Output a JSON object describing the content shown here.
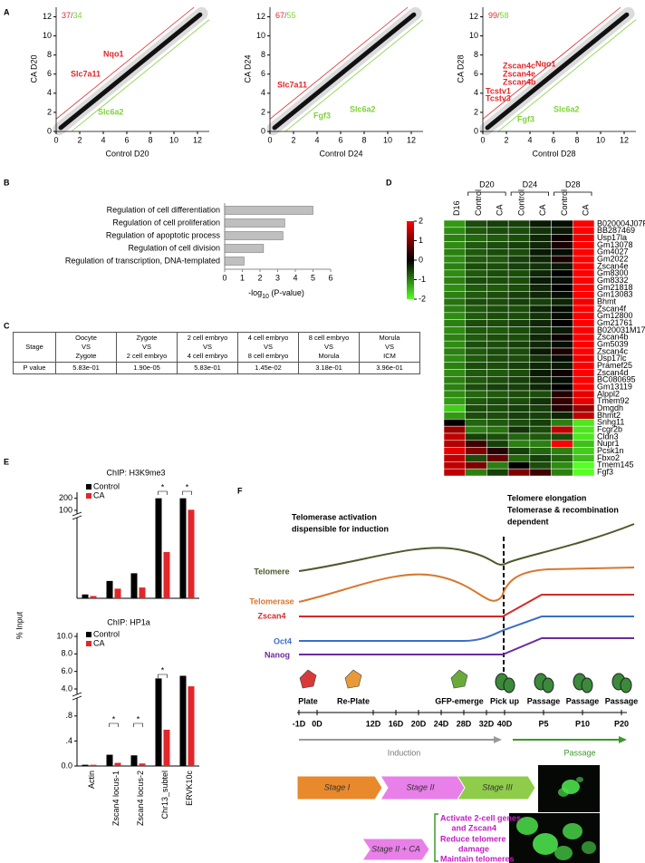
{
  "panel_labels": [
    "A",
    "B",
    "C",
    "D",
    "E",
    "F"
  ],
  "chart_data": [
    {
      "type": "scatter",
      "up_count": 37,
      "count_separator": "/",
      "down_count": 34,
      "up_color": "#e3262a",
      "down_color": "#7fd13b",
      "xlabel": "Control D20",
      "ylabel": "CA D20",
      "xlim": [
        0,
        13
      ],
      "ylim": [
        0,
        13
      ],
      "xticks": [
        0,
        2,
        4,
        6,
        8,
        10,
        12
      ],
      "yticks": [
        0,
        2,
        4,
        6,
        8,
        10,
        12
      ],
      "genes_up": [
        "Slc7a11",
        "Nqo1"
      ],
      "genes_down": [
        "Slc6a2"
      ]
    },
    {
      "type": "scatter",
      "up_count": 67,
      "count_separator": "/",
      "down_count": 55,
      "up_color": "#e3262a",
      "down_color": "#7fd13b",
      "xlabel": "Control D24",
      "ylabel": "CA D24",
      "xlim": [
        0,
        13
      ],
      "ylim": [
        0,
        13
      ],
      "xticks": [
        0,
        2,
        4,
        6,
        8,
        10,
        12
      ],
      "yticks": [
        0,
        2,
        4,
        6,
        8,
        10,
        12
      ],
      "genes_up": [
        "Slc7a11"
      ],
      "genes_down": [
        "Fgf3",
        "Slc6a2"
      ]
    },
    {
      "type": "scatter",
      "up_count": 99,
      "count_separator": "/",
      "down_count": 58,
      "up_color": "#e3262a",
      "down_color": "#7fd13b",
      "xlabel": "Control D28",
      "ylabel": "CA D28",
      "xlim": [
        0,
        13
      ],
      "ylim": [
        0,
        13
      ],
      "xticks": [
        0,
        2,
        4,
        6,
        8,
        10,
        12
      ],
      "yticks": [
        0,
        2,
        4,
        6,
        8,
        10,
        12
      ],
      "genes_up": [
        "Zscan4c",
        "Zscan4e",
        "Zscan4b",
        "Tcstv1",
        "Tcstv3",
        "Nqo1"
      ],
      "genes_down": [
        "Slc6a2",
        "Fgf3"
      ]
    },
    {
      "type": "hbar",
      "categories": [
        "Regulation of cell differentiation",
        "Regulation of cell proliferation",
        "Regulation of apoptotic process",
        "Regulation of cell division",
        "Regulation of transcription, DNA-templated"
      ],
      "values": [
        5.0,
        3.4,
        3.3,
        2.2,
        1.1
      ],
      "color": "#bfbfbf",
      "xlim": [
        0,
        6
      ],
      "xticks": [
        0,
        1,
        2,
        3,
        4,
        5,
        6
      ],
      "xlabel": [
        "-log",
        "10",
        " (P-value)"
      ]
    },
    {
      "type": "heatmap",
      "groups": [
        "D20",
        "D24",
        "D28"
      ],
      "columns": [
        "D16",
        "Control",
        "CA",
        "Control",
        "CA",
        "Control",
        "CA"
      ],
      "rows": [
        "B020004J07Rik",
        "BB287469",
        "Usp17la",
        "Gm13078",
        "Gm4027",
        "Gm2022",
        "Zscan4e",
        "Gm8300",
        "Gm8332",
        "Gm21818",
        "Gm13083",
        "Bhmt",
        "Zscan4f",
        "Gm12800",
        "Gm21761",
        "B020031M17Rik",
        "Zscan4b",
        "Gm5039",
        "Zscan4c",
        "Usp17lc",
        "Pramef25",
        "Zscan4d",
        "BC080695",
        "Gm13119",
        "Alppl2",
        "Tmem92",
        "Dmgdh",
        "Bhmt2",
        "Snhg11",
        "Fcgr2b",
        "Cldn3",
        "Nupr1",
        "Pcsk1n",
        "Fbxo2",
        "Tmem145",
        "Fgf3"
      ],
      "values": [
        [
          -1.2,
          -0.6,
          -0.5,
          -0.5,
          -0.2,
          -0.1,
          2
        ],
        [
          -1.1,
          -0.7,
          -0.6,
          -0.6,
          -0.4,
          -0.2,
          2
        ],
        [
          -1.0,
          -0.8,
          -0.7,
          -0.6,
          -0.3,
          0.1,
          1.9
        ],
        [
          -1.1,
          -0.7,
          -0.6,
          -0.5,
          -0.3,
          0.2,
          2
        ],
        [
          -1.0,
          -0.7,
          -0.6,
          -0.6,
          -0.2,
          -0.1,
          2
        ],
        [
          -1.1,
          -0.7,
          -0.7,
          -0.5,
          -0.3,
          0.2,
          2
        ],
        [
          -1.0,
          -0.6,
          -0.6,
          -0.5,
          -0.4,
          -0.2,
          2
        ],
        [
          -1.1,
          -0.7,
          -0.6,
          -0.6,
          -0.3,
          0,
          2
        ],
        [
          -1.0,
          -0.6,
          -0.6,
          -0.6,
          -0.2,
          -0.1,
          2
        ],
        [
          -1.1,
          -0.7,
          -0.7,
          -0.6,
          -0.3,
          0,
          2
        ],
        [
          -1.0,
          -0.7,
          -0.6,
          -0.5,
          -0.3,
          -0.1,
          2
        ],
        [
          -0.9,
          -0.6,
          -0.6,
          -0.5,
          -0.5,
          -0.3,
          1.9
        ],
        [
          -1.0,
          -0.7,
          -0.6,
          -0.6,
          -0.3,
          -0.1,
          2
        ],
        [
          -1.1,
          -0.7,
          -0.6,
          -0.6,
          -0.4,
          -0.1,
          2
        ],
        [
          -1.0,
          -0.6,
          -0.6,
          -0.5,
          -0.3,
          0,
          2
        ],
        [
          -1.1,
          -0.7,
          -0.7,
          -0.6,
          -0.4,
          -0.2,
          2
        ],
        [
          -1.0,
          -0.7,
          -0.6,
          -0.6,
          -0.3,
          0.1,
          2
        ],
        [
          -1.1,
          -0.6,
          -0.6,
          -0.5,
          -0.3,
          -0.1,
          2
        ],
        [
          -1.0,
          -0.7,
          -0.6,
          -0.6,
          -0.2,
          0.2,
          2
        ],
        [
          -1.1,
          -0.7,
          -0.6,
          -0.6,
          -0.4,
          -0.1,
          1.9
        ],
        [
          -1.0,
          -0.6,
          -0.6,
          -0.5,
          -0.3,
          -0.2,
          2
        ],
        [
          -1.1,
          -0.7,
          -0.7,
          -0.6,
          -0.2,
          0.1,
          2
        ],
        [
          -1.0,
          -0.7,
          -0.6,
          -0.5,
          -0.3,
          -0.1,
          2
        ],
        [
          -1.0,
          -0.6,
          -0.5,
          -0.5,
          -0.3,
          0,
          2
        ],
        [
          -1.1,
          -0.8,
          -0.7,
          -0.6,
          -0.6,
          0.3,
          1.8
        ],
        [
          -1.2,
          -0.7,
          -0.6,
          -0.6,
          -0.4,
          0.4,
          1.8
        ],
        [
          -1.6,
          -0.6,
          -0.6,
          -0.5,
          -0.5,
          0.3,
          1.2
        ],
        [
          -1.2,
          -0.6,
          -0.6,
          -0.5,
          -0.5,
          -0.3,
          1.5
        ],
        [
          0,
          -0.8,
          -0.7,
          -0.6,
          -0.5,
          -1.0,
          -1.8
        ],
        [
          1.2,
          -1.0,
          -0.9,
          -0.4,
          -0.6,
          1.5,
          -1.8
        ],
        [
          1.5,
          -0.5,
          -0.6,
          -0.8,
          -0.7,
          -0.6,
          -1.8
        ],
        [
          1.4,
          0.5,
          -0.5,
          -1.0,
          -1.0,
          2,
          -1.5
        ],
        [
          1.8,
          1.0,
          0.3,
          -0.5,
          -0.8,
          -1.0,
          -1.6
        ],
        [
          1.5,
          -0.6,
          0.8,
          -0.8,
          -0.5,
          -0.8,
          -1.5
        ],
        [
          1.5,
          1.0,
          -1.0,
          0,
          -0.6,
          -1.1,
          -2
        ],
        [
          1.5,
          -1.0,
          -0.5,
          1.0,
          0.5,
          -1.0,
          -2
        ]
      ],
      "clim": [
        -2,
        2
      ],
      "colorbar_ticks": [
        2,
        1,
        0,
        -1,
        -2
      ],
      "colors": [
        "#55ff22",
        "#000000",
        "#ff0000"
      ]
    },
    {
      "type": "broken-bar",
      "title": "ChIP: H3K9me3",
      "series": [
        {
          "name": "Control",
          "color": "#000000",
          "values": [
            1.0,
            4.5,
            6.5,
            200,
            200
          ]
        },
        {
          "name": "CA",
          "color": "#e3262a",
          "values": [
            0.6,
            2.5,
            2.8,
            12,
            105
          ]
        }
      ],
      "ylim_lower": [
        0,
        20
      ],
      "ylim_upper": [
        100,
        220
      ],
      "yticks_upper": [
        100,
        200
      ],
      "annotations": [
        "*",
        "*"
      ]
    },
    {
      "type": "broken-bar",
      "title": "ChIP: HP1a",
      "ylabel": "% Input",
      "categories": [
        "Actin",
        "Zscan4 locus-1",
        "Zscan4 locus-2",
        "Chr13_subtel",
        "ERVK10c"
      ],
      "series": [
        {
          "name": "Control",
          "color": "#000000",
          "values": [
            0.02,
            0.18,
            0.17,
            5.2,
            5.5
          ]
        },
        {
          "name": "CA",
          "color": "#e3262a",
          "values": [
            0.02,
            0.05,
            0.04,
            0.58,
            4.3
          ]
        }
      ],
      "ylim_lower": [
        0,
        1
      ],
      "ylim_upper": [
        4,
        10
      ],
      "yticks_lower": [
        {
          "value": 0,
          "label": "0.0"
        },
        {
          "value": 0.4,
          "label": ".4"
        },
        {
          "value": 0.8,
          "label": ".8"
        }
      ],
      "yticks_upper": [
        {
          "value": 4,
          "label": "4.0"
        },
        {
          "value": 6,
          "label": "6.0"
        },
        {
          "value": 8,
          "label": "8.0"
        },
        {
          "value": 10,
          "label": "10.0"
        }
      ],
      "annotations": [
        "*",
        "*",
        "*"
      ]
    }
  ],
  "table": {
    "header": [
      [
        "Stage"
      ],
      [
        "Oocyte",
        "VS",
        "Zygote"
      ],
      [
        "Zygote",
        "VS",
        "2 cell embryo"
      ],
      [
        "2 cell embryo",
        "VS",
        "4 cell embryo"
      ],
      [
        "4 cell embryo",
        "VS",
        "8 cell embryo"
      ],
      [
        "8 cell embryo",
        "VS",
        "Morula"
      ],
      [
        "Morula",
        "VS",
        "ICM"
      ]
    ],
    "rows": [
      [
        "P value",
        "5.83e-01",
        "1.90e-05",
        "5.83e-01",
        "1.45e-02",
        "3.18e-01",
        "3.96e-01"
      ]
    ]
  },
  "diagram": {
    "left_title": [
      "Telomerase activation",
      "dispensible for induction"
    ],
    "right_title": [
      "Telomere elongation",
      "Telomerase & recombination",
      "dependent"
    ],
    "curves": [
      {
        "label": "Telomere",
        "color": "#4b5a2a"
      },
      {
        "label": "Telomerase",
        "color": "#d8772f"
      },
      {
        "label": "Zscan4",
        "color": "#d42a2a"
      },
      {
        "label": "Oct4",
        "color": "#3d6fc4"
      },
      {
        "label": "Nanog",
        "color": "#6a2aa0"
      }
    ],
    "events": [
      "Plate",
      "Re-Plate",
      "GFP-emerge",
      "Pick up",
      "Passage",
      "Passage",
      "Passage"
    ],
    "timeline": [
      "-1D",
      "0D",
      "12D",
      "16D",
      "20D",
      "24D",
      "28D",
      "32D",
      "40D",
      "P5",
      "P10",
      "P20"
    ],
    "phases": [
      "Induction",
      "Passage"
    ],
    "stages": [
      "Stage I",
      "Stage II",
      "Stage III"
    ],
    "ca_stage": "Stage II + CA",
    "effects": [
      "Activate 2-cell genes",
      "and Zscan4",
      "Reduce telomere",
      "damage",
      "Maintain telomeres"
    ]
  }
}
